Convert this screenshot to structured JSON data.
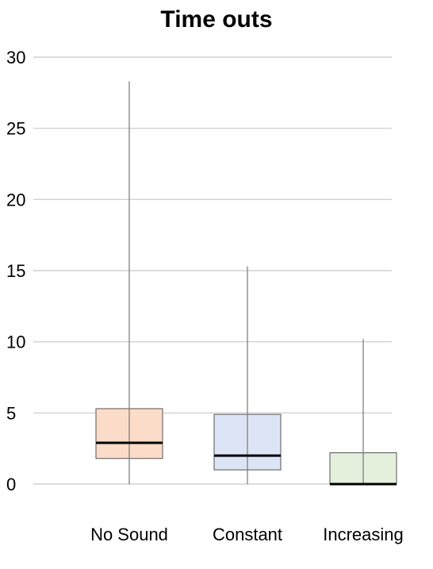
{
  "chart_data": {
    "type": "box",
    "title": "Time outs",
    "xlabel": "",
    "ylabel": "",
    "ylim": [
      0,
      30
    ],
    "yticks": [
      "0",
      "5",
      "10",
      "15",
      "20",
      "25",
      "30"
    ],
    "grid": true,
    "categories": [
      "No Sound",
      "Constant",
      "Increasing"
    ],
    "boxes": [
      {
        "category": "No Sound",
        "min": 0,
        "q1": 1.8,
        "median": 2.9,
        "q3": 5.3,
        "max": 28.3,
        "color": "#fbdcc8"
      },
      {
        "category": "Constant",
        "min": 0,
        "q1": 1.0,
        "median": 2.0,
        "q3": 4.9,
        "max": 15.3,
        "color": "#dde4f5"
      },
      {
        "category": "Increasing",
        "min": 0,
        "q1": 0.0,
        "median": 0.0,
        "q3": 2.2,
        "max": 10.2,
        "color": "#e4f0dc"
      }
    ]
  }
}
